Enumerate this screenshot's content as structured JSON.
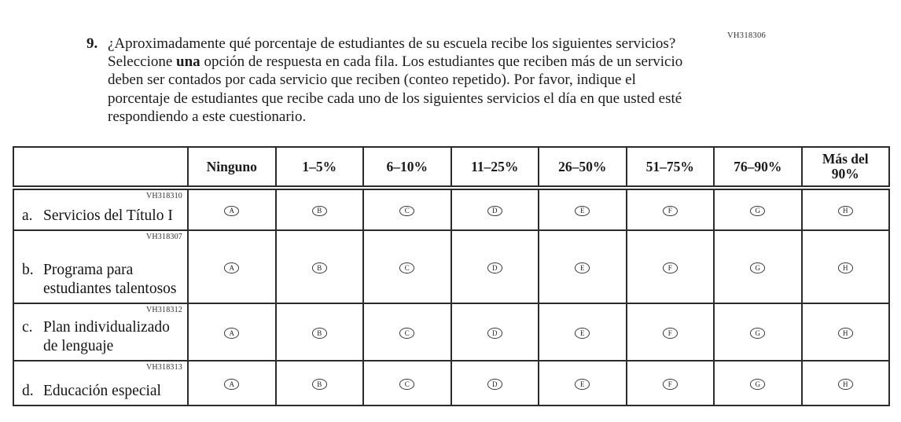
{
  "doc": {
    "code_top_right": "VH318306"
  },
  "question": {
    "number": "9.",
    "intro_1": "¿Aproximadamente qué porcentaje de estudiantes de su escuela recibe los siguientes servicios? Seleccione ",
    "bold_word": "una",
    "intro_2": " opción de respuesta en cada fila. Los estudiantes que reciben más de un servicio deben ser contados por cada servicio que reciben (conteo repetido). Por favor, indique el porcentaje de estudiantes que recibe cada uno de los siguientes servicios el día en que usted esté respondiendo a este cuestionario."
  },
  "table": {
    "columns": [
      "Ninguno",
      "1–5%",
      "6–10%",
      "11–25%",
      "26–50%",
      "51–75%",
      "76–90%",
      "Más del\n90%"
    ],
    "options": [
      "A",
      "B",
      "C",
      "D",
      "E",
      "F",
      "G",
      "H"
    ],
    "rows": [
      {
        "code": "VH318310",
        "marker": "a.",
        "label": "Servicios del Título I"
      },
      {
        "code": "VH318307",
        "marker": "b.",
        "label": "Programa para estudiantes talentosos"
      },
      {
        "code": "VH318312",
        "marker": "c.",
        "label": "Plan individualizado de lenguaje"
      },
      {
        "code": "VH318313",
        "marker": "d.",
        "label": "Educación especial"
      }
    ]
  }
}
